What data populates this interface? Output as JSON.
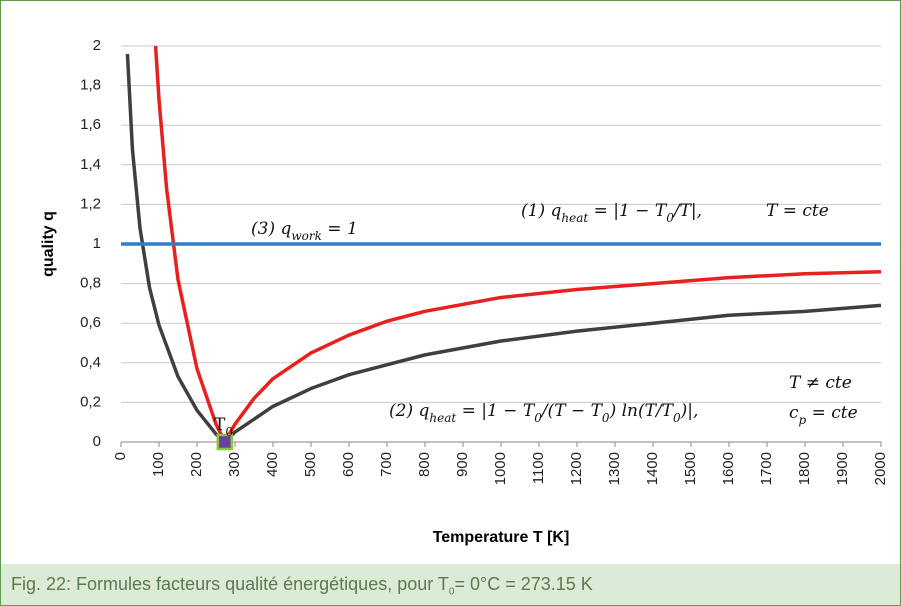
{
  "chart_data": {
    "type": "line",
    "xlabel": "Temperature T [K]",
    "ylabel": "quality q",
    "xlim": [
      0,
      2000
    ],
    "xticks": [
      0,
      100,
      200,
      300,
      400,
      500,
      600,
      700,
      800,
      900,
      1000,
      1100,
      1200,
      1300,
      1400,
      1500,
      1600,
      1700,
      1800,
      1900,
      2000
    ],
    "ylim": [
      0,
      2
    ],
    "yticks": [
      0,
      {
        "value": 0.2,
        "label": "0,2"
      },
      {
        "value": 0.4,
        "label": "0,4"
      },
      {
        "value": 0.6,
        "label": "0,6"
      },
      {
        "value": 0.8,
        "label": "0,8"
      },
      1,
      {
        "value": 1.2,
        "label": "1,2"
      },
      {
        "value": 1.4,
        "label": "1,4"
      },
      {
        "value": 1.6,
        "label": "1,6"
      },
      {
        "value": 1.8,
        "label": "1,8"
      },
      2
    ],
    "grid": true,
    "series": [
      {
        "color": "#e8201e",
        "x": [
          91,
          100,
          120,
          150,
          200,
          250,
          273.15,
          300,
          350,
          400,
          500,
          600,
          700,
          800,
          1000,
          1200,
          1400,
          1600,
          1800,
          2000
        ],
        "values": [
          2.0,
          1.73,
          1.28,
          0.82,
          0.37,
          0.09,
          0,
          0.09,
          0.22,
          0.32,
          0.45,
          0.54,
          0.61,
          0.66,
          0.73,
          0.77,
          0.8,
          0.83,
          0.85,
          0.86
        ]
      },
      {
        "color": "#3f3f3f",
        "x": [
          17,
          30,
          50,
          75,
          100,
          150,
          200,
          250,
          273.15,
          300,
          400,
          500,
          600,
          800,
          1000,
          1200,
          1400,
          1600,
          1800,
          2000
        ],
        "values": [
          1.96,
          1.48,
          1.08,
          0.78,
          0.59,
          0.33,
          0.16,
          0.04,
          0,
          0.05,
          0.18,
          0.27,
          0.34,
          0.44,
          0.51,
          0.56,
          0.6,
          0.64,
          0.66,
          0.69
        ]
      },
      {
        "color": "#2f7fc8",
        "x": [
          0,
          2000
        ],
        "values": [
          1,
          1
        ]
      }
    ],
    "marker": {
      "x": 273.15,
      "y": 0,
      "color": "#6b3fa0",
      "edge": "#8cc63f"
    },
    "annotations": [
      {
        "parts": [
          {
            "text": "(3)  q"
          },
          {
            "text": "work",
            "sub": true
          },
          {
            "text": " = 1"
          }
        ]
      },
      {
        "parts": [
          {
            "text": "(1)  q"
          },
          {
            "text": "heat",
            "sub": true
          },
          {
            "text": " = |1 − T"
          },
          {
            "text": "0",
            "sub": true
          },
          {
            "text": "/T|,"
          }
        ]
      },
      {
        "parts": [
          {
            "text": "T = cte"
          }
        ]
      },
      {
        "parts": [
          {
            "text": "(2)  q"
          },
          {
            "text": "heat",
            "sub": true
          },
          {
            "text": " = |1 − T"
          },
          {
            "text": "0",
            "sub": true
          },
          {
            "text": "/(T − T"
          },
          {
            "text": "0",
            "sub": true
          },
          {
            "text": ") ln(T/T"
          },
          {
            "text": "0",
            "sub": true
          },
          {
            "text": ")|,"
          }
        ]
      },
      {
        "parts": [
          {
            "text": "T ≠ cte"
          }
        ]
      },
      {
        "parts": [
          {
            "text": "c"
          },
          {
            "text": "p",
            "sub": true
          },
          {
            "text": " = cte"
          }
        ]
      },
      {
        "parts": [
          {
            "text": "T"
          },
          {
            "text": "0",
            "sub": true
          }
        ]
      }
    ]
  },
  "caption": [
    "Fig. 22: Formules facteurs qualité énergétiques, pour T",
    "0",
    "= 0°C = 273.15 K"
  ]
}
